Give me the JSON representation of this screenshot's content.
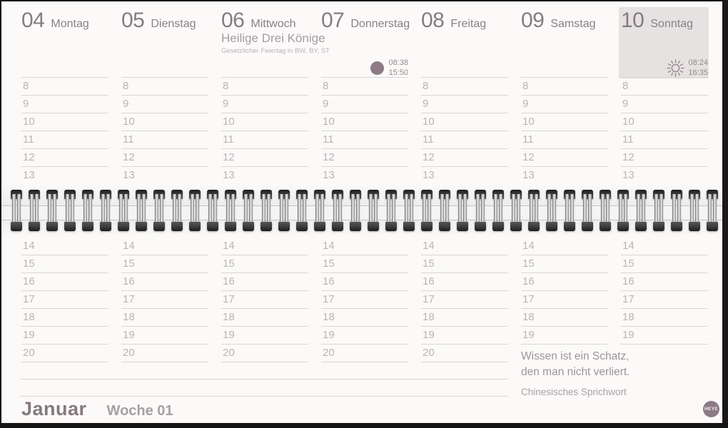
{
  "days": [
    {
      "number": "04",
      "name": "Montag",
      "afternoon": "full"
    },
    {
      "number": "05",
      "name": "Dienstag",
      "afternoon": "full"
    },
    {
      "number": "06",
      "name": "Mittwoch",
      "afternoon": "full",
      "holiday": "Heilige Drei Könige",
      "holiday_note": "Gesetzlicher Feiertag in BW, BY, ST"
    },
    {
      "number": "07",
      "name": "Donnerstag",
      "afternoon": "full",
      "astro": {
        "icon": "moon",
        "times": [
          "08:38",
          "15:50"
        ]
      }
    },
    {
      "number": "08",
      "name": "Freitag",
      "afternoon": "full"
    },
    {
      "number": "09",
      "name": "Samstag",
      "afternoon": "short"
    },
    {
      "number": "10",
      "name": "Sonntag",
      "afternoon": "short",
      "highlighted": true,
      "astro": {
        "icon": "sun",
        "times": [
          "08:24",
          "16:35"
        ]
      }
    }
  ],
  "hours": {
    "morning": [
      "8",
      "9",
      "10",
      "11",
      "12",
      "13"
    ],
    "afternoon_full": [
      "14",
      "15",
      "16",
      "17",
      "18",
      "19",
      "20"
    ],
    "afternoon_short": [
      "14",
      "15",
      "16",
      "17",
      "18",
      "19"
    ]
  },
  "quote": {
    "line1": "Wissen ist ein Schatz,",
    "line2": "den man nicht verliert.",
    "attribution": "Chinesisches Sprichwort"
  },
  "footer": {
    "month": "Januar",
    "week": "Woche 01"
  },
  "brand": {
    "logo": "HEYE"
  },
  "colors": {
    "accent_mauve": "#8c7a84",
    "header_text": "#867b82",
    "hour_text": "#b9b5b5",
    "rule_line": "#d9d6d5",
    "sunday_box": "#e5e2e1",
    "holiday_text": "#a39da0",
    "times_text": "#8f8b8c"
  }
}
